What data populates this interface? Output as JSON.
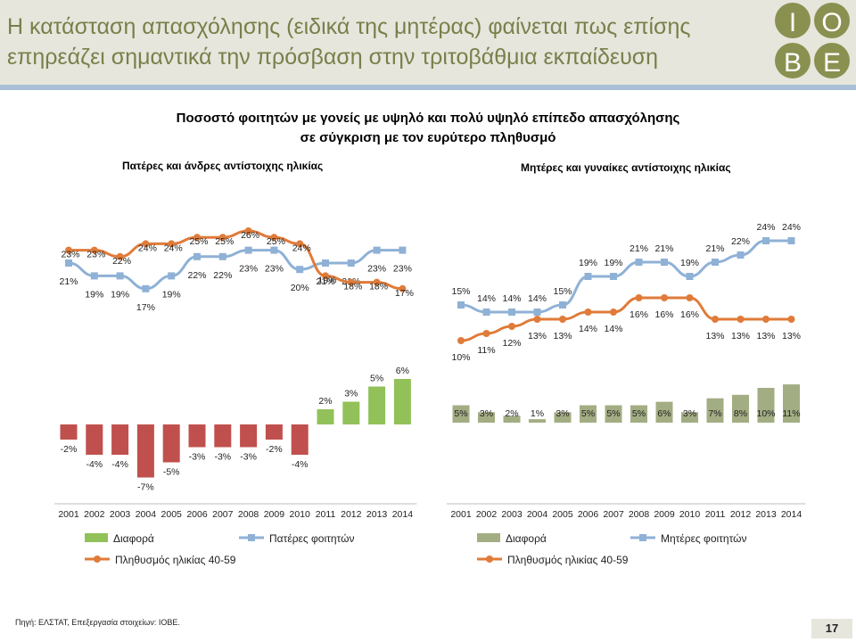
{
  "header": {
    "title_line1": "Η κατάσταση απασχόλησης (ειδικά της μητέρας) φαίνεται πως επίσης",
    "title_line2": "επηρεάζει σημαντικά την πρόσβαση στην τριτοβάθμια εκπαίδευση",
    "logo_letters": [
      "Ι",
      "Ο",
      "Β",
      "Ε"
    ]
  },
  "chart_title_line1": "Ποσοστό φοιτητών με γονείς με υψηλό και πολύ υψηλό επίπεδο απασχόλησης",
  "chart_title_line2": "σε σύγκριση με τον ευρύτερο πληθυσμό",
  "colors": {
    "blue": "#8fb1d6",
    "orange": "#e07b39",
    "green": "#92c15a",
    "red": "#c0504d",
    "olive": "#a3ad83"
  },
  "chart_data": [
    {
      "type": "bar+line",
      "subtitle": "Πατέρες και άνδρες αντίστοιχης ηλικίας",
      "categories": [
        "2001",
        "2002",
        "2003",
        "2004",
        "2005",
        "2006",
        "2007",
        "2008",
        "2009",
        "2010",
        "2011",
        "2012",
        "2013",
        "2014"
      ],
      "series": [
        {
          "name": "Διαφορά",
          "type": "bar",
          "values": [
            -2,
            -4,
            -4,
            -7,
            -5,
            -3,
            -3,
            -3,
            -2,
            -4,
            2,
            3,
            5,
            6
          ],
          "labels": [
            "-2%",
            "-4%",
            "-4%",
            "-7%",
            "-5%",
            "-3%",
            "-3%",
            "-3%",
            "-2%",
            "-4%",
            "2%",
            "3%",
            "5%",
            "6%"
          ]
        },
        {
          "name": "Πατέρες φοιτητών",
          "type": "line",
          "values": [
            21,
            19,
            19,
            17,
            19,
            22,
            22,
            23,
            23,
            20,
            21,
            21,
            23,
            23
          ],
          "labels": [
            "21%",
            "19%",
            "19%",
            "17%",
            "19%",
            "22%",
            "22%",
            "23%",
            "23%",
            "20%",
            "21%",
            "21%",
            "23%",
            "23%"
          ]
        },
        {
          "name": "Πληθυσμός ηλικίας 40-59",
          "type": "line",
          "values": [
            23,
            23,
            22,
            24,
            24,
            25,
            25,
            26,
            25,
            24,
            19,
            18,
            18,
            17
          ],
          "labels": [
            "23%",
            "23%",
            "22%",
            "24%",
            "24%",
            "25%",
            "25%",
            "26%",
            "25%",
            "24%",
            "19%",
            "18%",
            "18%",
            "17%"
          ]
        }
      ],
      "legend": [
        "Διαφορά",
        "Πατέρες φοιτητών",
        "Πληθυσμός ηλικίας 40-59"
      ]
    },
    {
      "type": "bar+line",
      "subtitle": "Μητέρες και γυναίκες αντίστοιχης ηλικίας",
      "categories": [
        "2001",
        "2002",
        "2003",
        "2004",
        "2005",
        "2006",
        "2007",
        "2008",
        "2009",
        "2010",
        "2011",
        "2012",
        "2013",
        "2014"
      ],
      "series": [
        {
          "name": "Διαφορά",
          "type": "bar",
          "values": [
            5,
            3,
            2,
            1,
            3,
            5,
            5,
            5,
            6,
            3,
            7,
            8,
            10,
            11
          ],
          "labels": [
            "5%",
            "3%",
            "2%",
            "1%",
            "3%",
            "5%",
            "5%",
            "5%",
            "6%",
            "3%",
            "7%",
            "8%",
            "10%",
            "11%"
          ]
        },
        {
          "name": "Μητέρες φοιτητών",
          "type": "line",
          "values": [
            15,
            14,
            14,
            14,
            15,
            19,
            19,
            21,
            21,
            19,
            21,
            22,
            24,
            24
          ],
          "labels": [
            "15%",
            "14%",
            "14%",
            "14%",
            "15%",
            "19%",
            "19%",
            "21%",
            "21%",
            "19%",
            "21%",
            "22%",
            "24%",
            "24%"
          ]
        },
        {
          "name": "Πληθυσμός ηλικίας 40-59",
          "type": "line",
          "values": [
            10,
            11,
            12,
            13,
            13,
            14,
            14,
            16,
            16,
            16,
            13,
            13,
            13,
            13
          ],
          "labels": [
            "10%",
            "11%",
            "12%",
            "13%",
            "13%",
            "14%",
            "14%",
            "16%",
            "16%",
            "16%",
            "13%",
            "13%",
            "13%",
            "13%"
          ]
        }
      ],
      "legend": [
        "Διαφορά",
        "Μητέρες φοιτητών",
        "Πληθυσμός ηλικίας 40-59"
      ]
    }
  ],
  "footer": {
    "source": "Πηγή: ΕΛΣΤΑΤ, Επεξεργασία στοιχείων: ΙΟΒΕ.",
    "page_number": "17"
  }
}
